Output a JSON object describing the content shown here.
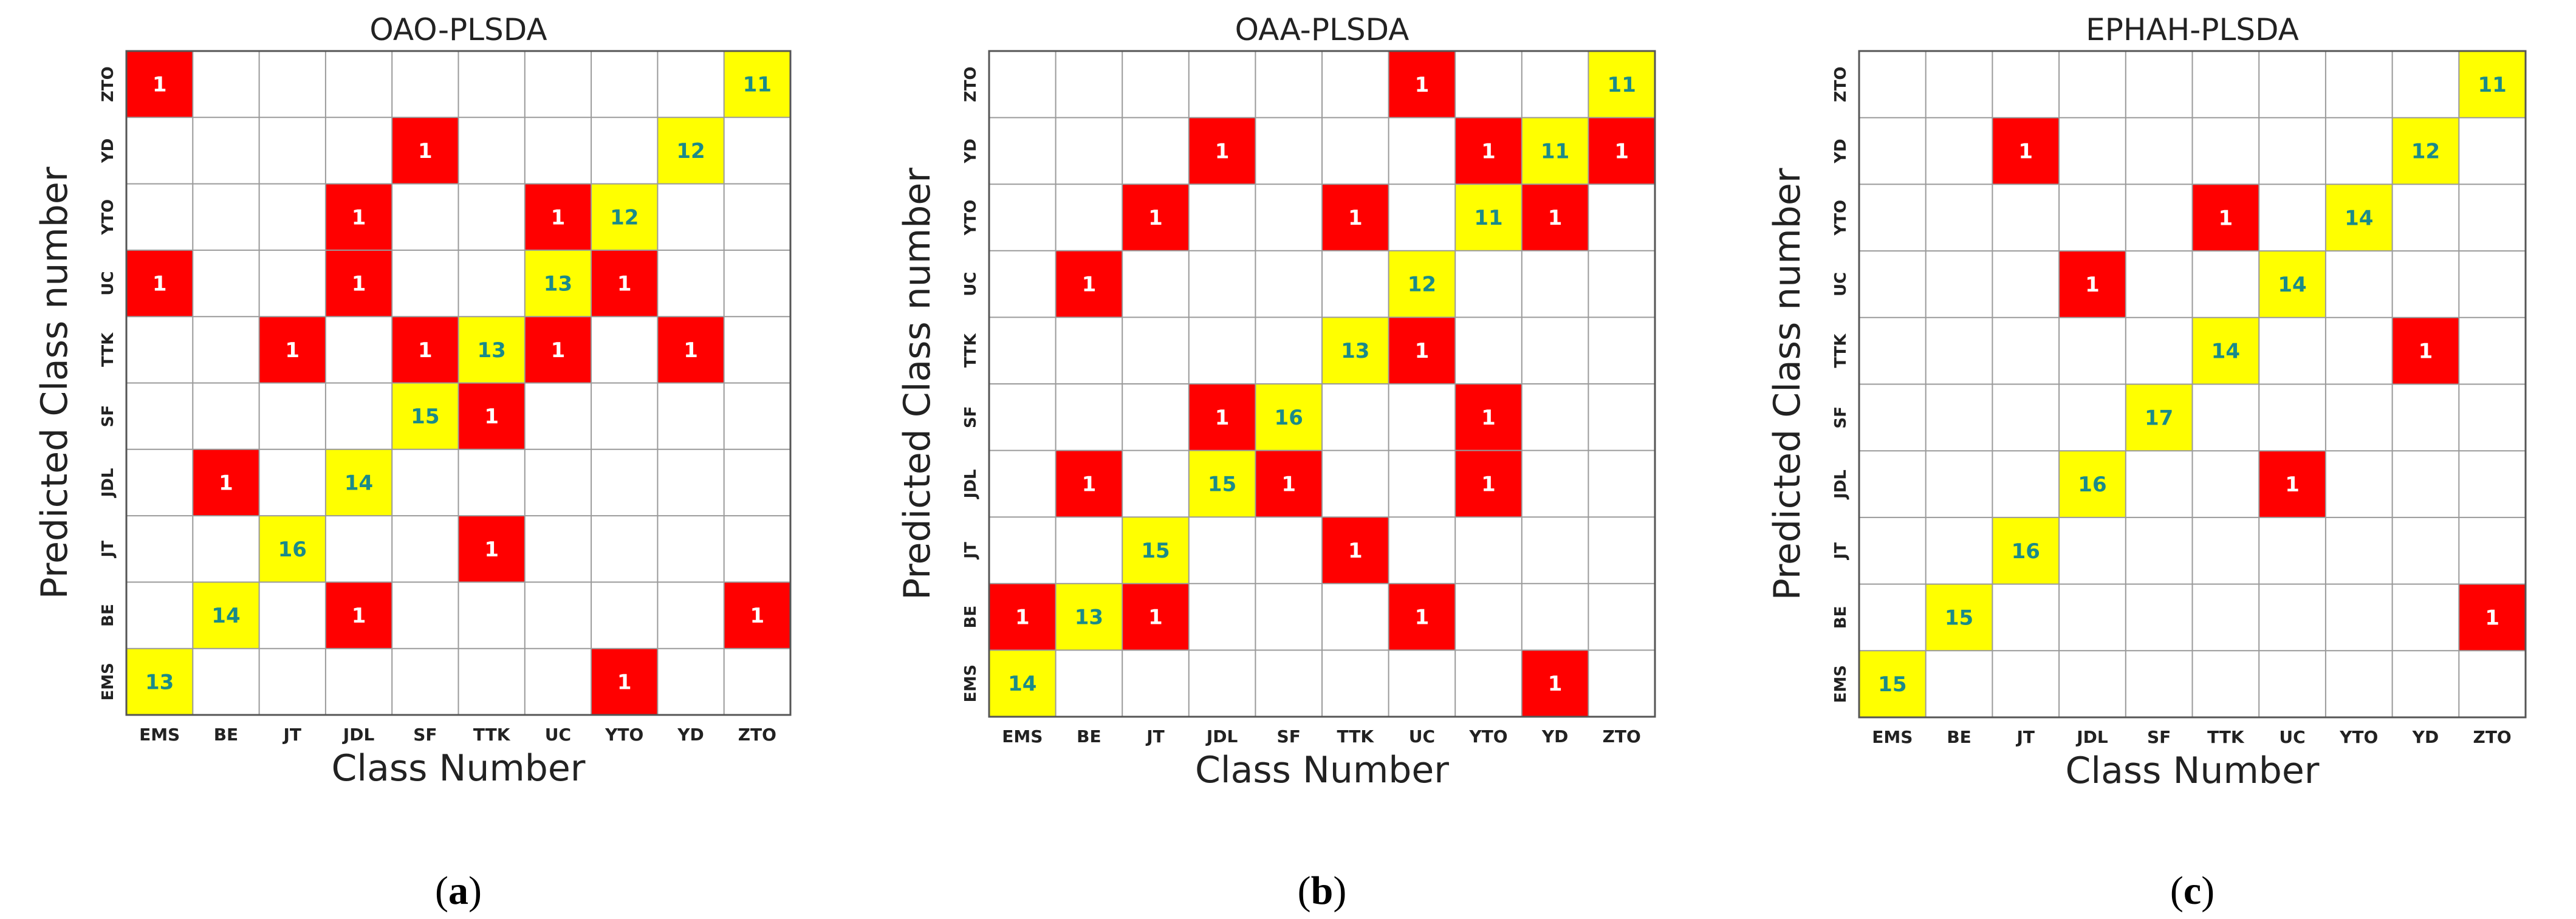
{
  "chart_data": [
    {
      "type": "heatmap",
      "title": "OAO-PLSDA",
      "xlabel": "Class Number",
      "ylabel": "Predicted Class number",
      "caption_letter": "a",
      "categories": [
        "EMS",
        "BE",
        "JT",
        "JDL",
        "SF",
        "TTK",
        "UC",
        "YTO",
        "YD",
        "ZTO"
      ],
      "cells": [
        {
          "actual": "EMS",
          "predicted": "EMS",
          "value": 13
        },
        {
          "actual": "YTO",
          "predicted": "EMS",
          "value": 1
        },
        {
          "actual": "BE",
          "predicted": "BE",
          "value": 14
        },
        {
          "actual": "JDL",
          "predicted": "BE",
          "value": 1
        },
        {
          "actual": "ZTO",
          "predicted": "BE",
          "value": 1
        },
        {
          "actual": "JT",
          "predicted": "JT",
          "value": 16
        },
        {
          "actual": "TTK",
          "predicted": "JT",
          "value": 1
        },
        {
          "actual": "BE",
          "predicted": "JDL",
          "value": 1
        },
        {
          "actual": "JDL",
          "predicted": "JDL",
          "value": 14
        },
        {
          "actual": "SF",
          "predicted": "SF",
          "value": 15
        },
        {
          "actual": "TTK",
          "predicted": "SF",
          "value": 1
        },
        {
          "actual": "JT",
          "predicted": "TTK",
          "value": 1
        },
        {
          "actual": "SF",
          "predicted": "TTK",
          "value": 1
        },
        {
          "actual": "TTK",
          "predicted": "TTK",
          "value": 13
        },
        {
          "actual": "UC",
          "predicted": "TTK",
          "value": 1
        },
        {
          "actual": "YD",
          "predicted": "TTK",
          "value": 1
        },
        {
          "actual": "EMS",
          "predicted": "UC",
          "value": 1
        },
        {
          "actual": "JDL",
          "predicted": "UC",
          "value": 1
        },
        {
          "actual": "UC",
          "predicted": "UC",
          "value": 13
        },
        {
          "actual": "YTO",
          "predicted": "UC",
          "value": 1
        },
        {
          "actual": "JDL",
          "predicted": "YTO",
          "value": 1
        },
        {
          "actual": "UC",
          "predicted": "YTO",
          "value": 1
        },
        {
          "actual": "YTO",
          "predicted": "YTO",
          "value": 12
        },
        {
          "actual": "SF",
          "predicted": "YD",
          "value": 1
        },
        {
          "actual": "YD",
          "predicted": "YD",
          "value": 12
        },
        {
          "actual": "EMS",
          "predicted": "ZTO",
          "value": 1
        },
        {
          "actual": "ZTO",
          "predicted": "ZTO",
          "value": 11
        }
      ]
    },
    {
      "type": "heatmap",
      "title": "OAA-PLSDA",
      "xlabel": "Class Number",
      "ylabel": "Predicted Class number",
      "caption_letter": "b",
      "categories": [
        "EMS",
        "BE",
        "JT",
        "JDL",
        "SF",
        "TTK",
        "UC",
        "YTO",
        "YD",
        "ZTO"
      ],
      "cells": [
        {
          "actual": "EMS",
          "predicted": "EMS",
          "value": 14
        },
        {
          "actual": "YD",
          "predicted": "EMS",
          "value": 1
        },
        {
          "actual": "EMS",
          "predicted": "BE",
          "value": 1
        },
        {
          "actual": "BE",
          "predicted": "BE",
          "value": 13
        },
        {
          "actual": "JT",
          "predicted": "BE",
          "value": 1
        },
        {
          "actual": "UC",
          "predicted": "BE",
          "value": 1
        },
        {
          "actual": "JT",
          "predicted": "JT",
          "value": 15
        },
        {
          "actual": "TTK",
          "predicted": "JT",
          "value": 1
        },
        {
          "actual": "BE",
          "predicted": "JDL",
          "value": 1
        },
        {
          "actual": "JDL",
          "predicted": "JDL",
          "value": 15
        },
        {
          "actual": "SF",
          "predicted": "JDL",
          "value": 1
        },
        {
          "actual": "YTO",
          "predicted": "JDL",
          "value": 1
        },
        {
          "actual": "JDL",
          "predicted": "SF",
          "value": 1
        },
        {
          "actual": "SF",
          "predicted": "SF",
          "value": 16
        },
        {
          "actual": "YTO",
          "predicted": "SF",
          "value": 1
        },
        {
          "actual": "TTK",
          "predicted": "TTK",
          "value": 13
        },
        {
          "actual": "UC",
          "predicted": "TTK",
          "value": 1
        },
        {
          "actual": "BE",
          "predicted": "UC",
          "value": 1
        },
        {
          "actual": "UC",
          "predicted": "UC",
          "value": 12
        },
        {
          "actual": "JT",
          "predicted": "YTO",
          "value": 1
        },
        {
          "actual": "TTK",
          "predicted": "YTO",
          "value": 1
        },
        {
          "actual": "YTO",
          "predicted": "YTO",
          "value": 11
        },
        {
          "actual": "YD",
          "predicted": "YTO",
          "value": 1
        },
        {
          "actual": "JDL",
          "predicted": "YD",
          "value": 1
        },
        {
          "actual": "YTO",
          "predicted": "YD",
          "value": 1
        },
        {
          "actual": "YD",
          "predicted": "YD",
          "value": 11
        },
        {
          "actual": "ZTO",
          "predicted": "YD",
          "value": 1
        },
        {
          "actual": "UC",
          "predicted": "ZTO",
          "value": 1
        },
        {
          "actual": "ZTO",
          "predicted": "ZTO",
          "value": 11
        }
      ]
    },
    {
      "type": "heatmap",
      "title": "EPHAH-PLSDA",
      "xlabel": "Class Number",
      "ylabel": "Predicted Class number",
      "caption_letter": "c",
      "categories": [
        "EMS",
        "BE",
        "JT",
        "JDL",
        "SF",
        "TTK",
        "UC",
        "YTO",
        "YD",
        "ZTO"
      ],
      "cells": [
        {
          "actual": "EMS",
          "predicted": "EMS",
          "value": 15
        },
        {
          "actual": "BE",
          "predicted": "BE",
          "value": 15
        },
        {
          "actual": "ZTO",
          "predicted": "BE",
          "value": 1
        },
        {
          "actual": "JT",
          "predicted": "JT",
          "value": 16
        },
        {
          "actual": "JDL",
          "predicted": "JDL",
          "value": 16
        },
        {
          "actual": "UC",
          "predicted": "JDL",
          "value": 1
        },
        {
          "actual": "SF",
          "predicted": "SF",
          "value": 17
        },
        {
          "actual": "TTK",
          "predicted": "TTK",
          "value": 14
        },
        {
          "actual": "YD",
          "predicted": "TTK",
          "value": 1
        },
        {
          "actual": "JDL",
          "predicted": "UC",
          "value": 1
        },
        {
          "actual": "UC",
          "predicted": "UC",
          "value": 14
        },
        {
          "actual": "TTK",
          "predicted": "YTO",
          "value": 1
        },
        {
          "actual": "YTO",
          "predicted": "YTO",
          "value": 14
        },
        {
          "actual": "JT",
          "predicted": "YD",
          "value": 1
        },
        {
          "actual": "YD",
          "predicted": "YD",
          "value": 12
        },
        {
          "actual": "ZTO",
          "predicted": "ZTO",
          "value": 11
        }
      ]
    }
  ],
  "colors": {
    "correct_fill": "#ffff00",
    "correct_text": "#1a8a8a",
    "error_fill": "#ff0000",
    "error_text": "#ffffff",
    "grid": "#9a9a9a",
    "border": "#555555"
  }
}
